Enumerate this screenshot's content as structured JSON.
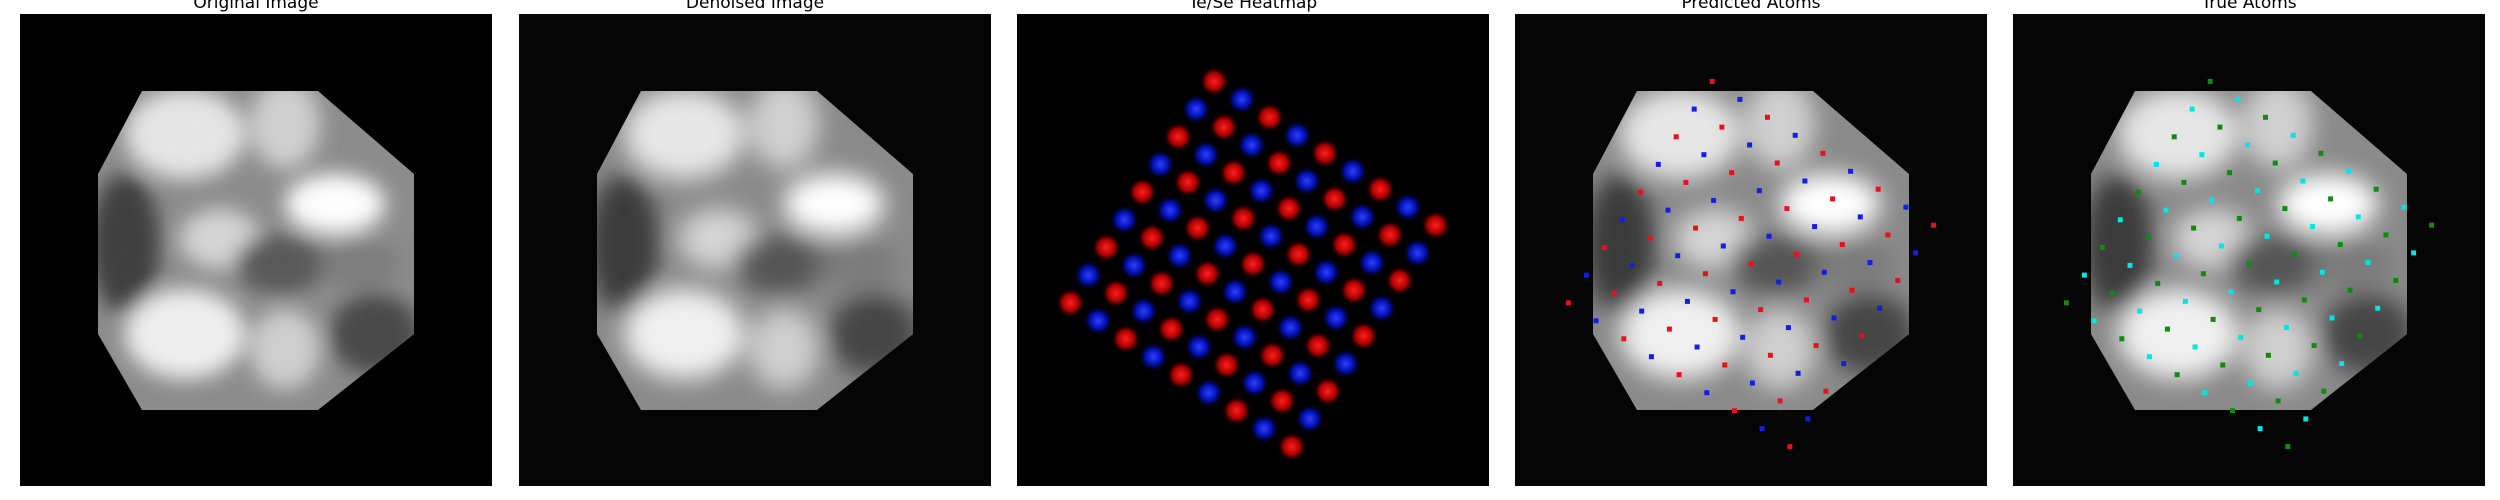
{
  "figure": {
    "panels": [
      {
        "title": "Original Image"
      },
      {
        "title": "Denoised Image"
      },
      {
        "title": "Te/Se Heatmap"
      },
      {
        "title": "Predicted Atoms"
      },
      {
        "title": "True Atoms"
      }
    ]
  },
  "colors": {
    "te": "#ff2020",
    "se": "#2030ff",
    "predicted_te": "#e8101c",
    "predicted_se": "#1020e0",
    "true_a": "#00e5e5",
    "true_b": "#108a10"
  },
  "legend_semantics": {
    "heatmap": "red and blue blobs arranged in a rotated square lattice",
    "predicted": "small red and blue square markers",
    "true": "small cyan and green markers"
  }
}
